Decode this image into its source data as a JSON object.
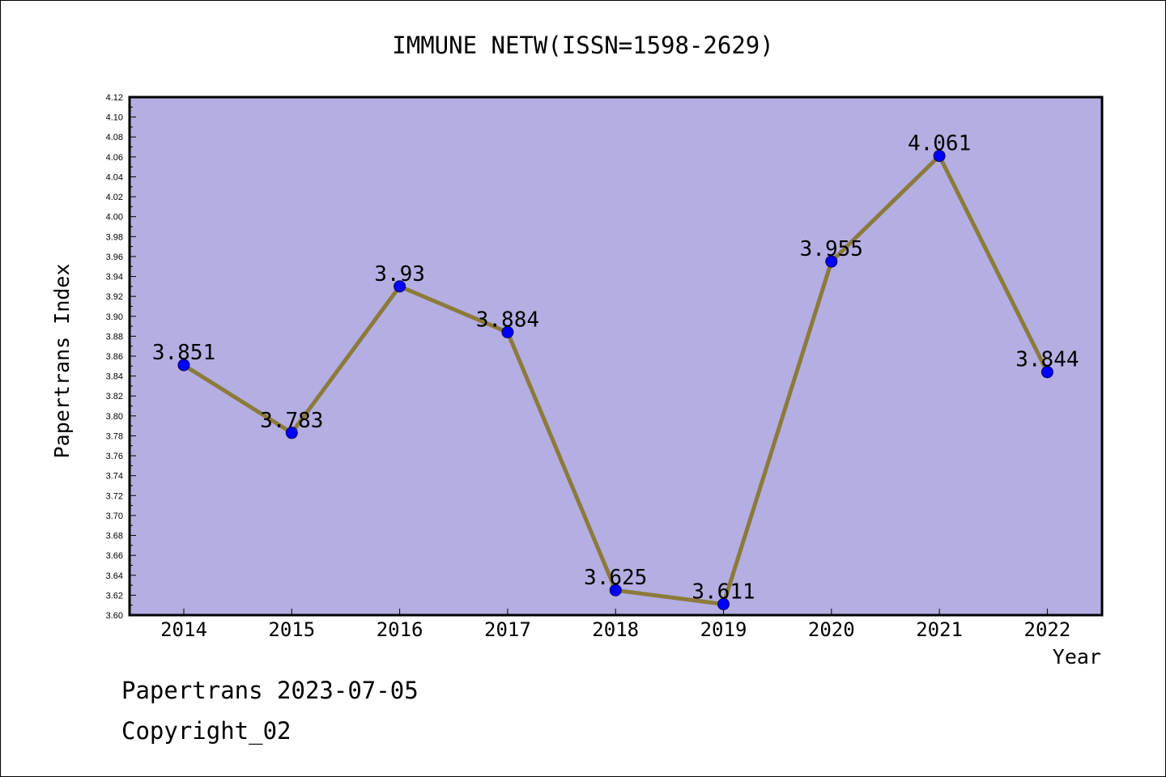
{
  "colors": {
    "plot_background": "#b4aee2",
    "line": "#8c7a3a",
    "marker": "#0000ff",
    "text": "#000000"
  },
  "chart_data": {
    "type": "line",
    "title": "IMMUNE NETW(ISSN=1598-2629)",
    "xlabel": "Year",
    "ylabel": "Papertrans Index",
    "categories": [
      "2014",
      "2015",
      "2016",
      "2017",
      "2018",
      "2019",
      "2020",
      "2021",
      "2022"
    ],
    "values": [
      3.851,
      3.783,
      3.93,
      3.884,
      3.625,
      3.611,
      3.955,
      4.061,
      3.844
    ],
    "data_labels": [
      "3.851",
      "3.783",
      "3.93",
      "3.884",
      "3.625",
      "3.611",
      "3.955",
      "4.061",
      "3.844"
    ],
    "ylim": [
      3.6,
      4.12
    ],
    "y_tick_step": 0.02,
    "y_tick_labels": [
      "3.60",
      "3.62",
      "3.64",
      "3.66",
      "3.68",
      "3.70",
      "3.72",
      "3.74",
      "3.76",
      "3.78",
      "3.80",
      "3.82",
      "3.84",
      "3.86",
      "3.88",
      "3.90",
      "3.92",
      "3.94",
      "3.96",
      "3.98",
      "4.00",
      "4.02",
      "4.04",
      "4.06",
      "4.08",
      "4.10",
      "4.12"
    ],
    "grid": false,
    "legend": "none",
    "marker": "circle"
  },
  "footer": {
    "line1": "Papertrans 2023-07-05",
    "line2": "Copyright_02"
  }
}
